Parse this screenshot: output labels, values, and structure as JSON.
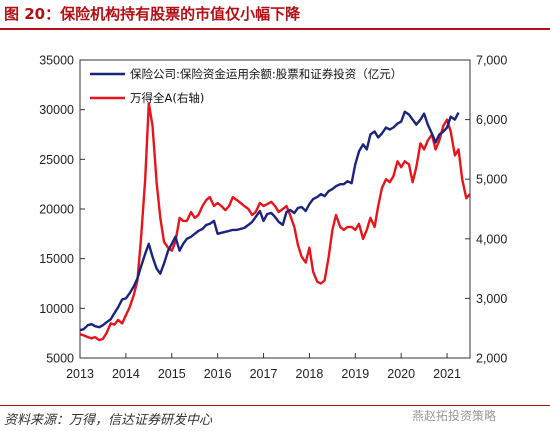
{
  "header": {
    "figure_title": "图 20：保险机构持有股票的市值仅小幅下降"
  },
  "footer": {
    "source": "资料来源：万得，信达证券研发中心",
    "watermark": "燕赵拓投资策略"
  },
  "chart_data": {
    "type": "line",
    "title": "",
    "xlabel": "",
    "ylabel": "",
    "x_ticks": [
      "2013",
      "2014",
      "2015",
      "2016",
      "2017",
      "2018",
      "2019",
      "2020",
      "2021"
    ],
    "x_range": [
      2013.0,
      2021.5
    ],
    "y_left": {
      "range": [
        5000,
        35000
      ],
      "ticks": [
        "5000",
        "10000",
        "15000",
        "20000",
        "25000",
        "30000",
        "35000"
      ],
      "tick_values": [
        5000,
        10000,
        15000,
        20000,
        25000,
        30000,
        35000
      ]
    },
    "y_right": {
      "range": [
        2000,
        7000
      ],
      "ticks": [
        "2,000",
        "3,000",
        "4,000",
        "5,000",
        "6,000",
        "7,000"
      ],
      "tick_values": [
        2000,
        3000,
        4000,
        5000,
        6000,
        7000
      ]
    },
    "legend_position": "top-left",
    "grid": false,
    "series": [
      {
        "name": "保险公司:保险资金运用余额:股票和证券投资（亿元）",
        "axis": "left",
        "color": "#1a237e",
        "points": [
          [
            2013.0,
            7800
          ],
          [
            2013.08,
            7900
          ],
          [
            2013.17,
            8300
          ],
          [
            2013.25,
            8400
          ],
          [
            2013.33,
            8200
          ],
          [
            2013.42,
            8100
          ],
          [
            2013.5,
            8300
          ],
          [
            2013.58,
            8600
          ],
          [
            2013.67,
            8900
          ],
          [
            2013.75,
            9500
          ],
          [
            2013.83,
            10100
          ],
          [
            2013.92,
            10900
          ],
          [
            2014.0,
            11000
          ],
          [
            2014.08,
            11500
          ],
          [
            2014.17,
            12200
          ],
          [
            2014.25,
            13000
          ],
          [
            2014.33,
            14200
          ],
          [
            2014.42,
            15500
          ],
          [
            2014.5,
            16500
          ],
          [
            2014.58,
            15200
          ],
          [
            2014.67,
            14000
          ],
          [
            2014.75,
            13500
          ],
          [
            2014.83,
            14500
          ],
          [
            2014.92,
            15800
          ],
          [
            2015.0,
            16500
          ],
          [
            2015.08,
            17200
          ],
          [
            2015.17,
            15800
          ],
          [
            2015.25,
            16500
          ],
          [
            2015.33,
            17000
          ],
          [
            2015.42,
            17200
          ],
          [
            2015.5,
            17500
          ],
          [
            2015.58,
            17800
          ],
          [
            2015.67,
            18000
          ],
          [
            2015.75,
            18400
          ],
          [
            2015.83,
            18500
          ],
          [
            2015.92,
            18800
          ],
          [
            2016.0,
            17500
          ],
          [
            2016.08,
            17600
          ],
          [
            2016.17,
            17700
          ],
          [
            2016.25,
            17800
          ],
          [
            2016.33,
            17900
          ],
          [
            2016.42,
            17900
          ],
          [
            2016.5,
            18000
          ],
          [
            2016.58,
            18100
          ],
          [
            2016.67,
            18400
          ],
          [
            2016.75,
            18700
          ],
          [
            2016.83,
            19200
          ],
          [
            2016.92,
            19800
          ],
          [
            2017.0,
            18800
          ],
          [
            2017.08,
            19500
          ],
          [
            2017.17,
            19600
          ],
          [
            2017.25,
            19200
          ],
          [
            2017.33,
            18700
          ],
          [
            2017.42,
            18400
          ],
          [
            2017.5,
            19700
          ],
          [
            2017.58,
            19900
          ],
          [
            2017.67,
            19600
          ],
          [
            2017.75,
            20100
          ],
          [
            2017.83,
            20200
          ],
          [
            2017.92,
            19800
          ],
          [
            2018.0,
            20500
          ],
          [
            2018.08,
            21000
          ],
          [
            2018.17,
            21200
          ],
          [
            2018.25,
            21500
          ],
          [
            2018.33,
            21300
          ],
          [
            2018.42,
            21800
          ],
          [
            2018.5,
            22000
          ],
          [
            2018.58,
            22300
          ],
          [
            2018.67,
            22500
          ],
          [
            2018.75,
            22500
          ],
          [
            2018.83,
            22800
          ],
          [
            2018.92,
            22600
          ],
          [
            2019.0,
            24500
          ],
          [
            2019.08,
            25800
          ],
          [
            2019.17,
            26500
          ],
          [
            2019.25,
            26000
          ],
          [
            2019.33,
            27500
          ],
          [
            2019.42,
            27800
          ],
          [
            2019.5,
            27200
          ],
          [
            2019.58,
            27600
          ],
          [
            2019.67,
            28200
          ],
          [
            2019.75,
            28000
          ],
          [
            2019.83,
            28200
          ],
          [
            2019.92,
            28600
          ],
          [
            2020.0,
            28800
          ],
          [
            2020.08,
            29800
          ],
          [
            2020.17,
            29500
          ],
          [
            2020.25,
            29000
          ],
          [
            2020.33,
            28500
          ],
          [
            2020.42,
            29000
          ],
          [
            2020.5,
            29600
          ],
          [
            2020.58,
            28500
          ],
          [
            2020.67,
            27600
          ],
          [
            2020.75,
            26700
          ],
          [
            2020.83,
            27500
          ],
          [
            2020.92,
            27800
          ],
          [
            2021.0,
            28200
          ],
          [
            2021.08,
            29300
          ],
          [
            2021.17,
            29000
          ],
          [
            2021.25,
            29700
          ]
        ]
      },
      {
        "name": "万得全A(右轴)",
        "axis": "right",
        "color": "#e8141c",
        "points": [
          [
            2013.0,
            2400
          ],
          [
            2013.08,
            2380
          ],
          [
            2013.17,
            2350
          ],
          [
            2013.25,
            2330
          ],
          [
            2013.33,
            2350
          ],
          [
            2013.42,
            2300
          ],
          [
            2013.5,
            2320
          ],
          [
            2013.58,
            2420
          ],
          [
            2013.67,
            2580
          ],
          [
            2013.75,
            2560
          ],
          [
            2013.83,
            2640
          ],
          [
            2013.92,
            2580
          ],
          [
            2014.0,
            2720
          ],
          [
            2014.08,
            2850
          ],
          [
            2014.17,
            3050
          ],
          [
            2014.25,
            3300
          ],
          [
            2014.33,
            4000
          ],
          [
            2014.42,
            5000
          ],
          [
            2014.5,
            6270
          ],
          [
            2014.58,
            5900
          ],
          [
            2014.67,
            4950
          ],
          [
            2014.75,
            4350
          ],
          [
            2014.83,
            3950
          ],
          [
            2014.92,
            3850
          ],
          [
            2015.0,
            3800
          ],
          [
            2015.08,
            3950
          ],
          [
            2015.17,
            4350
          ],
          [
            2015.25,
            4300
          ],
          [
            2015.33,
            4300
          ],
          [
            2015.42,
            4450
          ],
          [
            2015.5,
            4350
          ],
          [
            2015.58,
            4400
          ],
          [
            2015.67,
            4550
          ],
          [
            2015.75,
            4650
          ],
          [
            2015.83,
            4700
          ],
          [
            2015.92,
            4550
          ],
          [
            2016.0,
            4600
          ],
          [
            2016.08,
            4550
          ],
          [
            2016.17,
            4480
          ],
          [
            2016.25,
            4550
          ],
          [
            2016.33,
            4700
          ],
          [
            2016.42,
            4650
          ],
          [
            2016.5,
            4600
          ],
          [
            2016.58,
            4550
          ],
          [
            2016.67,
            4500
          ],
          [
            2016.75,
            4400
          ],
          [
            2016.83,
            4450
          ],
          [
            2016.92,
            4600
          ],
          [
            2017.0,
            4550
          ],
          [
            2017.08,
            4580
          ],
          [
            2017.17,
            4620
          ],
          [
            2017.25,
            4550
          ],
          [
            2017.33,
            4450
          ],
          [
            2017.42,
            4500
          ],
          [
            2017.5,
            4550
          ],
          [
            2017.58,
            4400
          ],
          [
            2017.67,
            4200
          ],
          [
            2017.75,
            3900
          ],
          [
            2017.83,
            3700
          ],
          [
            2017.92,
            3600
          ],
          [
            2018.0,
            3850
          ],
          [
            2018.08,
            3450
          ],
          [
            2018.17,
            3280
          ],
          [
            2018.25,
            3250
          ],
          [
            2018.33,
            3300
          ],
          [
            2018.42,
            3700
          ],
          [
            2018.5,
            4150
          ],
          [
            2018.58,
            4400
          ],
          [
            2018.67,
            4200
          ],
          [
            2018.75,
            4150
          ],
          [
            2018.83,
            4200
          ],
          [
            2018.92,
            4200
          ],
          [
            2019.0,
            4150
          ],
          [
            2019.08,
            4250
          ],
          [
            2019.17,
            4000
          ],
          [
            2019.25,
            4150
          ],
          [
            2019.33,
            4350
          ],
          [
            2019.42,
            4200
          ],
          [
            2019.5,
            4550
          ],
          [
            2019.58,
            4850
          ],
          [
            2019.67,
            5000
          ],
          [
            2019.75,
            4950
          ],
          [
            2019.83,
            5050
          ],
          [
            2019.92,
            5300
          ],
          [
            2020.0,
            5200
          ],
          [
            2020.08,
            5300
          ],
          [
            2020.17,
            5250
          ],
          [
            2020.25,
            4950
          ],
          [
            2020.33,
            5200
          ],
          [
            2020.42,
            5600
          ],
          [
            2020.5,
            5500
          ],
          [
            2020.58,
            5650
          ],
          [
            2020.67,
            5750
          ],
          [
            2020.75,
            5500
          ],
          [
            2020.83,
            5650
          ],
          [
            2020.92,
            5900
          ],
          [
            2021.0,
            6000
          ],
          [
            2021.08,
            5800
          ],
          [
            2021.17,
            5400
          ],
          [
            2021.25,
            5500
          ],
          [
            2021.33,
            5000
          ],
          [
            2021.42,
            4680
          ],
          [
            2021.5,
            4750
          ]
        ]
      }
    ]
  }
}
